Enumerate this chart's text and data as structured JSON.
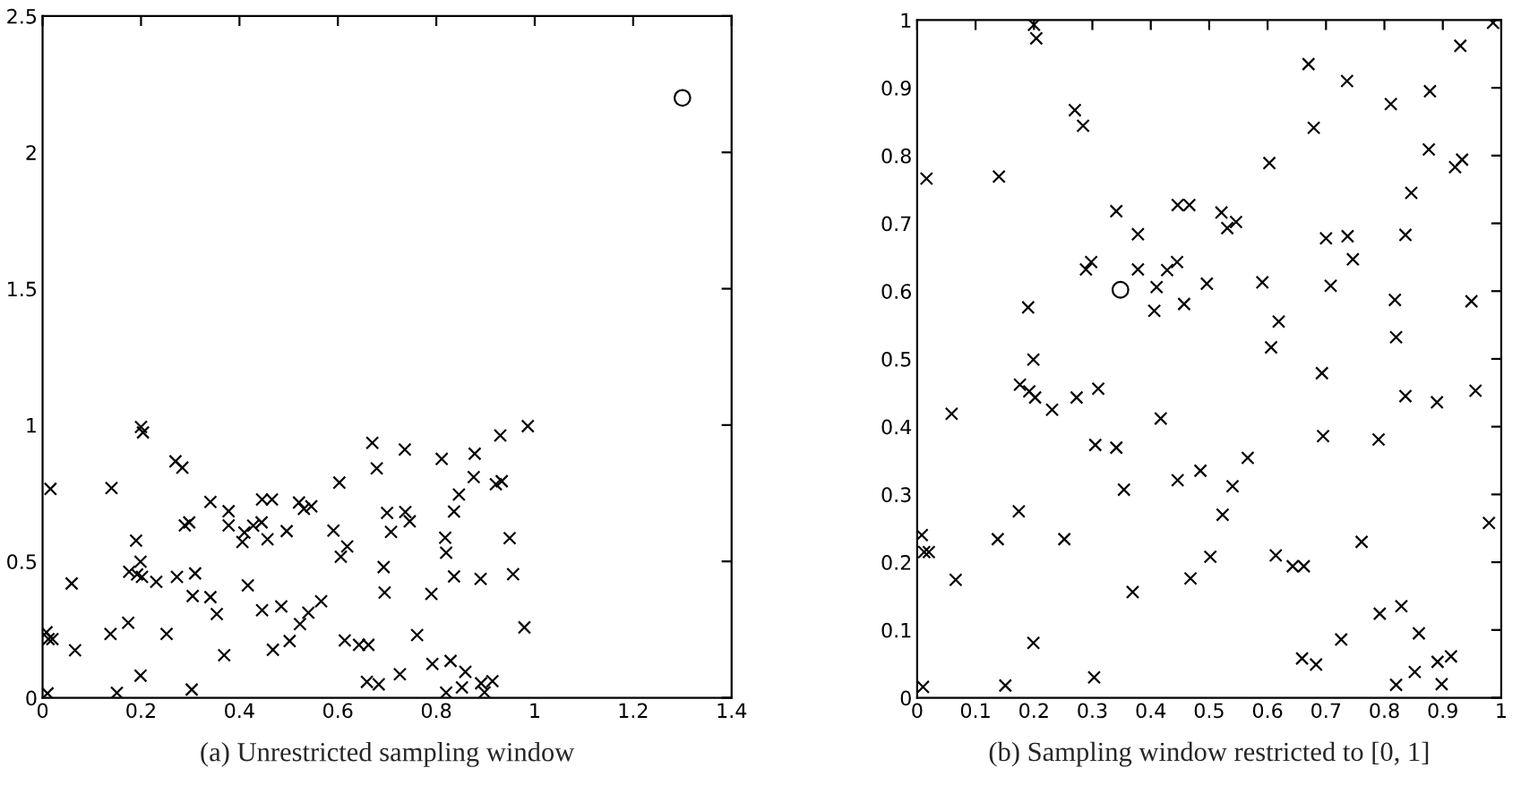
{
  "chart_data": [
    {
      "type": "scatter",
      "title": "(a) Unrestricted sampling window",
      "xlim": [
        0,
        1.4
      ],
      "ylim": [
        0,
        2.5
      ],
      "xticks": [
        0,
        0.2,
        0.4,
        0.6,
        0.8,
        1,
        1.2,
        1.4
      ],
      "yticks": [
        0,
        0.5,
        1,
        1.5,
        2,
        2.5
      ],
      "grid": false,
      "legend": false,
      "series": [
        {
          "marker": "cross",
          "color": "#000000",
          "x": [
            0.2,
            0.204,
            0.27,
            0.284,
            0.14,
            0.341,
            0.446,
            0.466,
            0.521,
            0.531,
            0.546,
            0.378,
            0.289,
            0.298,
            0.378,
            0.428,
            0.445,
            0.496,
            0.41,
            0.406,
            0.457,
            0.19,
            0.199,
            0.176,
            0.192,
            0.202,
            0.231,
            0.273,
            0.31,
            0.059,
            0.417,
            0.305,
            0.341,
            0.354,
            0.446,
            0.485,
            0.54,
            0.523,
            0.566,
            0.174,
            0.138,
            0.252,
            0.502,
            0.066,
            0.468,
            0.369,
            0.199,
            0.151,
            0.303,
            0.016,
            0.008,
            0.012,
            0.02,
            0.01,
            0.986,
            0.93,
            0.67,
            0.736,
            0.811,
            0.878,
            0.679,
            0.603,
            0.876,
            0.921,
            0.933,
            0.846,
            0.7,
            0.737,
            0.836,
            0.746,
            0.591,
            0.708,
            0.818,
            0.949,
            0.619,
            0.606,
            0.82,
            0.693,
            0.836,
            0.89,
            0.956,
            0.695,
            0.79,
            0.979,
            0.761,
            0.614,
            0.643,
            0.662,
            0.792,
            0.829,
            0.859,
            0.726,
            0.659,
            0.683,
            0.891,
            0.914,
            0.852,
            0.82,
            0.898
          ],
          "values": [
            0.993,
            0.973,
            0.867,
            0.844,
            0.769,
            0.718,
            0.727,
            0.727,
            0.716,
            0.693,
            0.702,
            0.684,
            0.632,
            0.643,
            0.632,
            0.631,
            0.643,
            0.611,
            0.606,
            0.571,
            0.581,
            0.576,
            0.499,
            0.462,
            0.452,
            0.443,
            0.425,
            0.443,
            0.456,
            0.419,
            0.412,
            0.373,
            0.369,
            0.307,
            0.321,
            0.335,
            0.312,
            0.27,
            0.354,
            0.275,
            0.234,
            0.234,
            0.208,
            0.174,
            0.176,
            0.156,
            0.081,
            0.018,
            0.03,
            0.766,
            0.24,
            0.215,
            0.215,
            0.016,
            0.996,
            0.962,
            0.935,
            0.91,
            0.876,
            0.895,
            0.841,
            0.789,
            0.809,
            0.783,
            0.794,
            0.745,
            0.678,
            0.681,
            0.683,
            0.647,
            0.613,
            0.608,
            0.587,
            0.585,
            0.555,
            0.517,
            0.532,
            0.479,
            0.445,
            0.436,
            0.453,
            0.386,
            0.381,
            0.258,
            0.23,
            0.21,
            0.194,
            0.194,
            0.124,
            0.135,
            0.095,
            0.086,
            0.058,
            0.049,
            0.053,
            0.061,
            0.038,
            0.019,
            0.02
          ]
        },
        {
          "marker": "circle",
          "color": "#000000",
          "x": [
            1.3
          ],
          "values": [
            2.2
          ]
        }
      ]
    },
    {
      "type": "scatter",
      "title": "(b) Sampling window restricted to [0, 1]",
      "xlim": [
        0,
        1
      ],
      "ylim": [
        0,
        1
      ],
      "xticks": [
        0,
        0.1,
        0.2,
        0.3,
        0.4,
        0.5,
        0.6,
        0.7,
        0.8,
        0.9,
        1
      ],
      "yticks": [
        0,
        0.1,
        0.2,
        0.3,
        0.4,
        0.5,
        0.6,
        0.7,
        0.8,
        0.9,
        1
      ],
      "grid": false,
      "legend": false,
      "series": [
        {
          "marker": "cross",
          "color": "#000000",
          "x": [
            0.2,
            0.204,
            0.27,
            0.284,
            0.14,
            0.341,
            0.446,
            0.466,
            0.521,
            0.531,
            0.546,
            0.378,
            0.289,
            0.298,
            0.378,
            0.428,
            0.445,
            0.496,
            0.41,
            0.406,
            0.457,
            0.19,
            0.199,
            0.176,
            0.192,
            0.202,
            0.231,
            0.273,
            0.31,
            0.059,
            0.417,
            0.305,
            0.341,
            0.354,
            0.446,
            0.485,
            0.54,
            0.523,
            0.566,
            0.174,
            0.138,
            0.252,
            0.502,
            0.066,
            0.468,
            0.369,
            0.199,
            0.151,
            0.303,
            0.016,
            0.008,
            0.012,
            0.02,
            0.01,
            0.986,
            0.93,
            0.67,
            0.736,
            0.811,
            0.878,
            0.679,
            0.603,
            0.876,
            0.921,
            0.933,
            0.846,
            0.7,
            0.737,
            0.836,
            0.746,
            0.591,
            0.708,
            0.818,
            0.949,
            0.619,
            0.606,
            0.82,
            0.693,
            0.836,
            0.89,
            0.956,
            0.695,
            0.79,
            0.979,
            0.761,
            0.614,
            0.643,
            0.662,
            0.792,
            0.829,
            0.859,
            0.726,
            0.659,
            0.683,
            0.891,
            0.914,
            0.852,
            0.82,
            0.898
          ],
          "values": [
            0.993,
            0.973,
            0.867,
            0.844,
            0.769,
            0.718,
            0.727,
            0.727,
            0.716,
            0.693,
            0.702,
            0.684,
            0.632,
            0.643,
            0.632,
            0.631,
            0.643,
            0.611,
            0.606,
            0.571,
            0.581,
            0.576,
            0.499,
            0.462,
            0.452,
            0.443,
            0.425,
            0.443,
            0.456,
            0.419,
            0.412,
            0.373,
            0.369,
            0.307,
            0.321,
            0.335,
            0.312,
            0.27,
            0.354,
            0.275,
            0.234,
            0.234,
            0.208,
            0.174,
            0.176,
            0.156,
            0.081,
            0.018,
            0.03,
            0.766,
            0.24,
            0.215,
            0.215,
            0.016,
            0.996,
            0.962,
            0.935,
            0.91,
            0.876,
            0.895,
            0.841,
            0.789,
            0.809,
            0.783,
            0.794,
            0.745,
            0.678,
            0.681,
            0.683,
            0.647,
            0.613,
            0.608,
            0.587,
            0.585,
            0.555,
            0.517,
            0.532,
            0.479,
            0.445,
            0.436,
            0.453,
            0.386,
            0.381,
            0.258,
            0.23,
            0.21,
            0.194,
            0.194,
            0.124,
            0.135,
            0.095,
            0.086,
            0.058,
            0.049,
            0.053,
            0.061,
            0.038,
            0.019,
            0.02
          ]
        },
        {
          "marker": "circle",
          "color": "#000000",
          "x": [
            0.348
          ],
          "values": [
            0.602
          ]
        }
      ]
    }
  ]
}
